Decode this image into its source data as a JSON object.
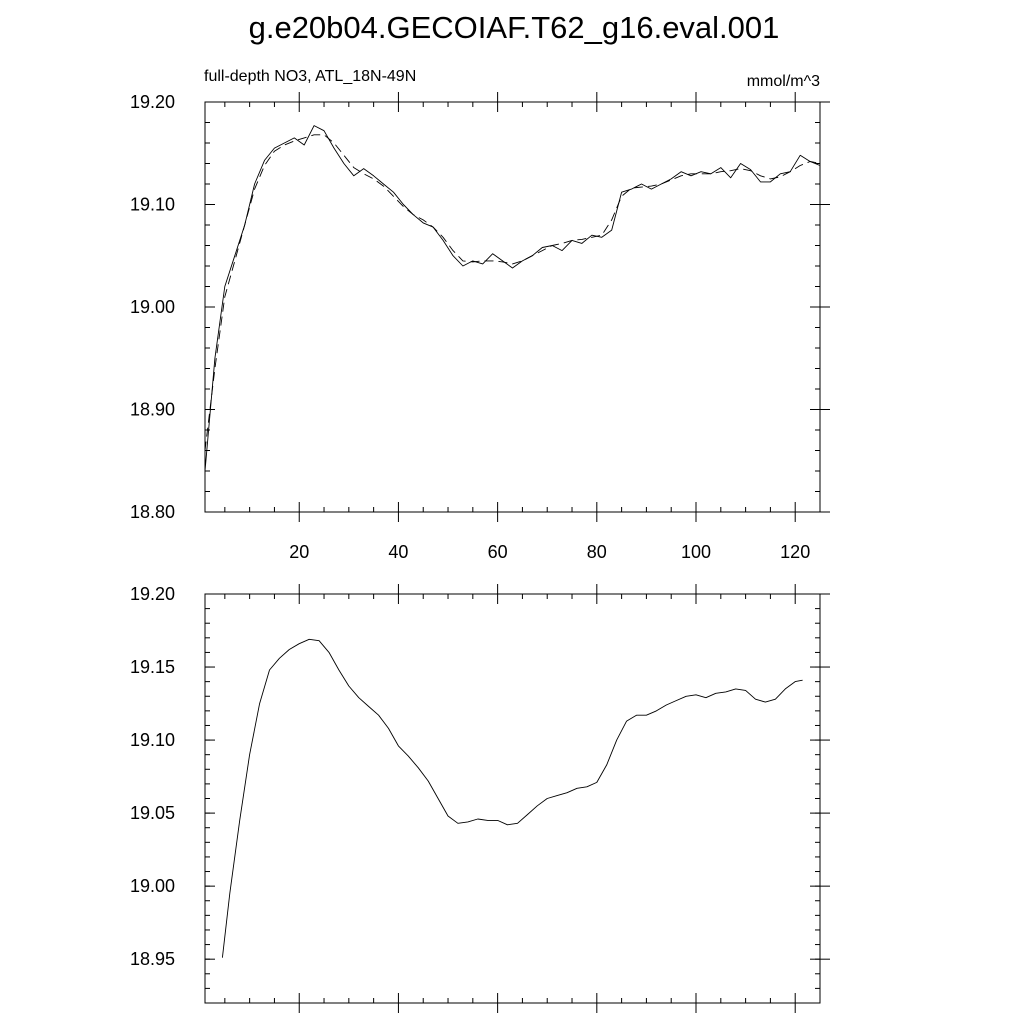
{
  "title": "g.e20b04.GECOIAF.T62_g16.eval.001",
  "chart_data": [
    {
      "type": "line",
      "title": "",
      "subtitle_left": "full-depth NO3, ATL_18N-49N",
      "subtitle_right": "mmol/m^3",
      "xlabel": "",
      "ylabel": "",
      "xlim": [
        1,
        125
      ],
      "ylim": [
        18.8,
        19.2
      ],
      "grid": false,
      "x_ticks": [
        20,
        40,
        60,
        80,
        100,
        120
      ],
      "y_ticks": [
        18.8,
        18.9,
        19.0,
        19.1,
        19.2
      ],
      "x_tick_labels": [
        "20",
        "40",
        "60",
        "80",
        "100",
        "120"
      ],
      "y_tick_labels": [
        "18.80",
        "18.90",
        "19.00",
        "19.10",
        "19.20"
      ],
      "series": [
        {
          "style": "solid",
          "x": [
            1,
            3,
            5,
            7,
            9,
            11,
            13,
            15,
            17,
            19,
            21,
            23,
            25,
            27,
            29,
            31,
            33,
            35,
            37,
            39,
            41,
            43,
            45,
            47,
            49,
            51,
            53,
            55,
            57,
            59,
            61,
            63,
            65,
            67,
            69,
            71,
            73,
            75,
            77,
            79,
            81,
            83,
            85,
            87,
            89,
            91,
            93,
            95,
            97,
            99,
            101,
            103,
            105,
            107,
            109,
            111,
            113,
            115,
            117,
            119,
            121,
            123,
            125
          ],
          "y": [
            18.84,
            18.95,
            19.02,
            19.05,
            19.08,
            19.12,
            19.143,
            19.155,
            19.16,
            19.165,
            19.158,
            19.177,
            19.172,
            19.155,
            19.14,
            19.128,
            19.135,
            19.128,
            19.12,
            19.112,
            19.1,
            19.09,
            19.082,
            19.078,
            19.065,
            19.05,
            19.04,
            19.045,
            19.042,
            19.052,
            19.045,
            19.038,
            19.045,
            19.05,
            19.058,
            19.06,
            19.055,
            19.065,
            19.062,
            19.07,
            19.068,
            19.075,
            19.112,
            19.115,
            19.12,
            19.115,
            19.12,
            19.125,
            19.132,
            19.128,
            19.132,
            19.13,
            19.136,
            19.126,
            19.14,
            19.134,
            19.122,
            19.122,
            19.13,
            19.132,
            19.148,
            19.142,
            19.138
          ]
        },
        {
          "style": "dashed",
          "x": [
            1,
            3,
            5,
            7,
            9,
            11,
            13,
            15,
            17,
            19,
            21,
            23,
            25,
            27,
            29,
            31,
            33,
            35,
            37,
            39,
            41,
            43,
            45,
            47,
            49,
            51,
            53,
            55,
            57,
            59,
            61,
            63,
            65,
            67,
            69,
            71,
            73,
            75,
            77,
            79,
            81,
            83,
            85,
            87,
            89,
            91,
            93,
            95,
            97,
            99,
            101,
            103,
            105,
            107,
            109,
            111,
            113,
            115,
            117,
            119,
            121,
            123,
            125
          ],
          "y": [
            18.86,
            18.94,
            19.01,
            19.045,
            19.08,
            19.115,
            19.138,
            19.152,
            19.158,
            19.162,
            19.165,
            19.168,
            19.168,
            19.16,
            19.148,
            19.136,
            19.13,
            19.125,
            19.118,
            19.108,
            19.098,
            19.09,
            19.085,
            19.078,
            19.068,
            19.055,
            19.045,
            19.044,
            19.045,
            19.045,
            19.044,
            19.042,
            19.045,
            19.05,
            19.055,
            19.06,
            19.062,
            19.065,
            19.066,
            19.068,
            19.07,
            19.085,
            19.108,
            19.116,
            19.117,
            19.118,
            19.12,
            19.124,
            19.128,
            19.13,
            19.13,
            19.13,
            19.132,
            19.133,
            19.135,
            19.133,
            19.128,
            19.125,
            19.127,
            19.132,
            19.138,
            19.142,
            19.14
          ]
        }
      ]
    },
    {
      "type": "line",
      "title": "",
      "xlabel": "",
      "ylabel": "",
      "xlim": [
        1,
        125
      ],
      "ylim": [
        18.92,
        19.2
      ],
      "grid": false,
      "x_ticks": [
        20,
        40,
        60,
        80,
        100,
        120
      ],
      "x_tick_labels": [],
      "y_ticks": [
        18.95,
        19.0,
        19.05,
        19.1,
        19.15,
        19.2
      ],
      "y_tick_labels": [
        "18.95",
        "19.00",
        "19.05",
        "19.10",
        "19.15",
        "19.20"
      ],
      "series": [
        {
          "style": "solid",
          "x": [
            4.5,
            6,
            8,
            10,
            12,
            14,
            16,
            18,
            20,
            22,
            24,
            26,
            28,
            30,
            32,
            34,
            36,
            38,
            40,
            42,
            44,
            46,
            48,
            50,
            52,
            54,
            56,
            58,
            60,
            62,
            64,
            66,
            68,
            70,
            72,
            74,
            76,
            78,
            80,
            82,
            84,
            86,
            88,
            90,
            92,
            94,
            96,
            98,
            100,
            102,
            104,
            106,
            108,
            110,
            112,
            114,
            116,
            118,
            120,
            121.5
          ],
          "y": [
            18.951,
            18.995,
            19.045,
            19.09,
            19.125,
            19.148,
            19.156,
            19.162,
            19.166,
            19.169,
            19.168,
            19.16,
            19.148,
            19.137,
            19.129,
            19.123,
            19.117,
            19.108,
            19.096,
            19.089,
            19.081,
            19.072,
            19.06,
            19.048,
            19.043,
            19.044,
            19.046,
            19.045,
            19.045,
            19.042,
            19.043,
            19.049,
            19.055,
            19.06,
            19.062,
            19.064,
            19.067,
            19.068,
            19.071,
            19.083,
            19.1,
            19.113,
            19.117,
            19.117,
            19.12,
            19.124,
            19.127,
            19.13,
            19.131,
            19.129,
            19.132,
            19.133,
            19.135,
            19.134,
            19.128,
            19.126,
            19.128,
            19.135,
            19.14,
            19.141
          ]
        }
      ]
    }
  ]
}
